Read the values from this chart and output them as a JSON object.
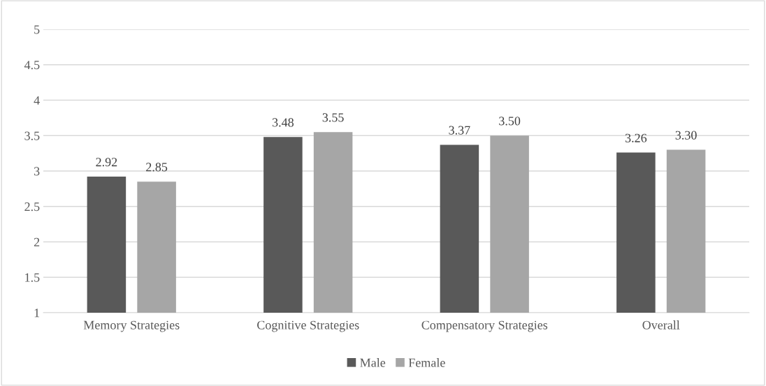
{
  "chart_data": {
    "type": "bar",
    "categories": [
      "Memory Strategies",
      "Cognitive Strategies",
      "Compensatory Strategies",
      "Overall"
    ],
    "series": [
      {
        "name": "Male",
        "color": "#595959",
        "values": [
          2.92,
          3.48,
          3.37,
          3.26
        ],
        "value_labels": [
          "2.92",
          "3.48",
          "3.37",
          "3.26"
        ]
      },
      {
        "name": "Female",
        "color": "#a6a6a6",
        "values": [
          2.85,
          3.55,
          3.5,
          3.3
        ],
        "value_labels": [
          "2.85",
          "3.55",
          "3.50",
          "3.30"
        ]
      }
    ],
    "ylim": [
      1,
      5
    ],
    "yticks": [
      1,
      1.5,
      2,
      2.5,
      3,
      3.5,
      4,
      4.5,
      5
    ],
    "grid": "y",
    "legend": "bottom"
  }
}
